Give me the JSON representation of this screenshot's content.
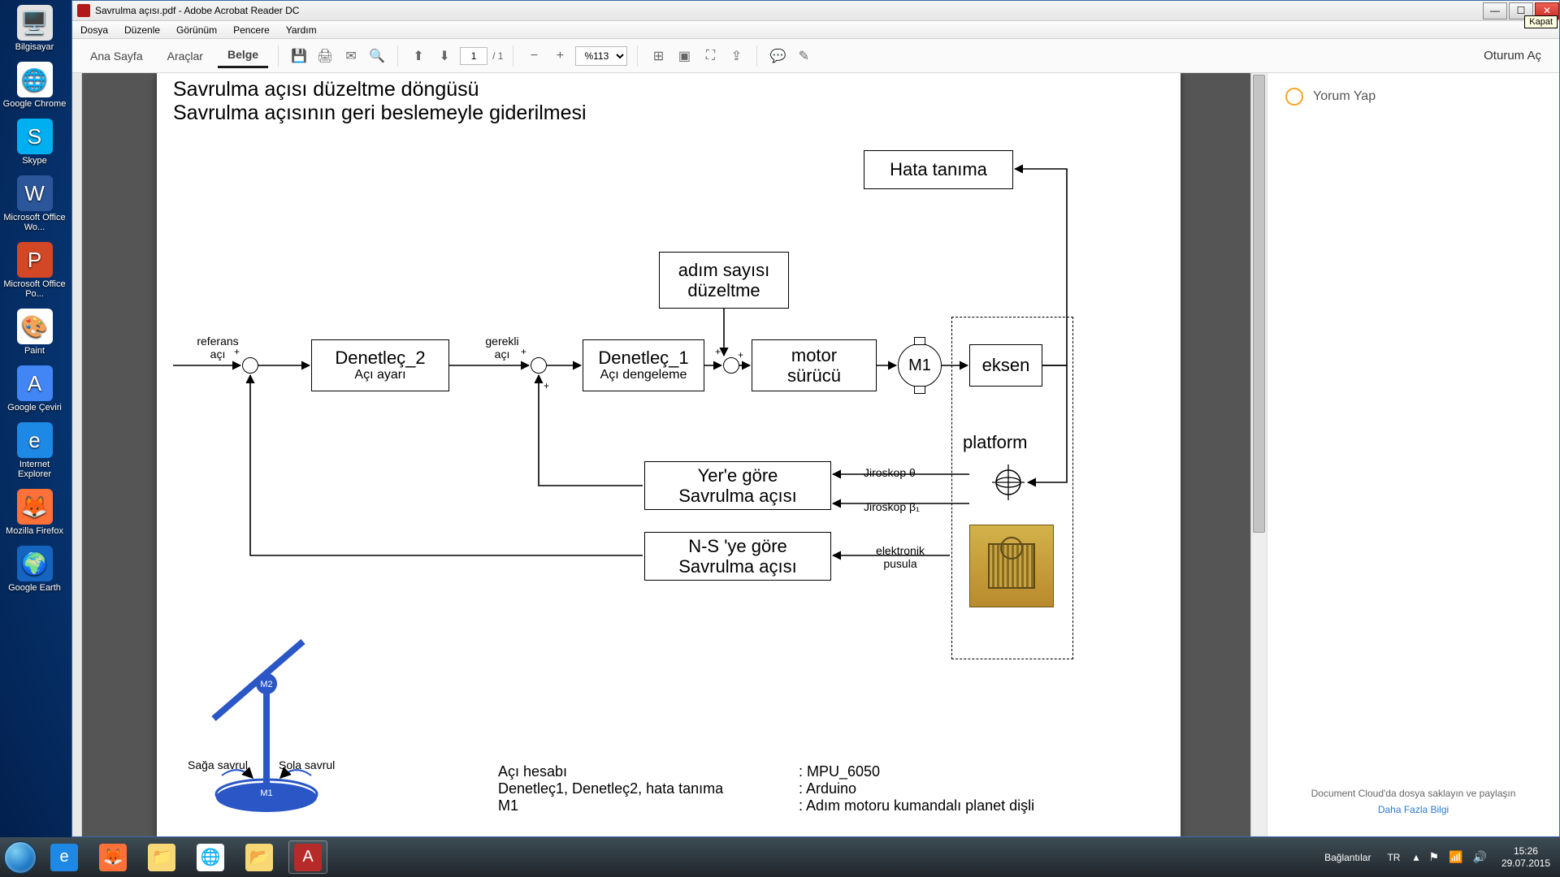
{
  "desktop_icons": [
    {
      "label": "Bilgisayar",
      "bg": "#e2e2e2",
      "glyph": "🖥️"
    },
    {
      "label": "Google Chrome",
      "bg": "#ffffff",
      "glyph": "🌐"
    },
    {
      "label": "Skype",
      "bg": "#00aff0",
      "glyph": "S"
    },
    {
      "label": "Microsoft Office Wo...",
      "bg": "#2b579a",
      "glyph": "W"
    },
    {
      "label": "Microsoft Office Po...",
      "bg": "#d24726",
      "glyph": "P"
    },
    {
      "label": "Paint",
      "bg": "#ffffff",
      "glyph": "🎨"
    },
    {
      "label": "Google Çeviri",
      "bg": "#4285f4",
      "glyph": "A"
    },
    {
      "label": "Internet Explorer",
      "bg": "#1e88e5",
      "glyph": "e"
    },
    {
      "label": "Mozilla Firefox",
      "bg": "#ff7139",
      "glyph": "🦊"
    },
    {
      "label": "Google Earth",
      "bg": "#1565c0",
      "glyph": "🌍"
    }
  ],
  "window": {
    "title": "Savrulma açısı.pdf - Adobe Acrobat Reader DC",
    "tooltip": "Kapat",
    "menus": [
      "Dosya",
      "Düzenle",
      "Görünüm",
      "Pencere",
      "Yardım"
    ],
    "tabs": {
      "home": "Ana Sayfa",
      "tools": "Araçlar",
      "doc": "Belge"
    },
    "page_current": "1",
    "page_total": "/ 1",
    "zoom": "%113",
    "signin": "Oturum Aç"
  },
  "sidepanel": {
    "comment": "Yorum Yap",
    "cloud": "Document Cloud'da dosya saklayın ve paylaşın",
    "more": "Daha Fazla Bilgi"
  },
  "document": {
    "title1": "Savrulma açısı düzeltme döngüsü",
    "title2": "Savrulma açısının geri beslemeyle giderilmesi",
    "blocks": {
      "hata": "Hata tanıma",
      "adim": {
        "l1": "adım sayısı",
        "l2": "düzeltme"
      },
      "den2": {
        "t": "Denetleç_2",
        "s": "Açı ayarı"
      },
      "den1": {
        "t": "Denetleç_1",
        "s": "Açı dengeleme"
      },
      "motor": {
        "l1": "motor",
        "l2": "sürücü"
      },
      "m1": "M1",
      "eksen": "eksen",
      "yer": {
        "l1": "Yer'e göre",
        "l2": "Savrulma açısı"
      },
      "ns": {
        "l1": "N-S 'ye göre",
        "l2": "Savrulma açısı"
      },
      "platform": "platform"
    },
    "labels": {
      "ref": {
        "l1": "referans",
        "l2": "açı"
      },
      "gerekli": {
        "l1": "gerekli",
        "l2": "açı"
      },
      "jiro_t": "Jiroskop θ",
      "jiro_b": "Jiroskop β₁",
      "epusula": {
        "l1": "elektronik",
        "l2": "pusula"
      },
      "saga": "Sağa savrul",
      "sola": "Sola savrul",
      "m2": "M2",
      "m1s": "M1"
    },
    "legend": {
      "r1k": "Açı hesabı",
      "r1v": ": MPU_6050",
      "r2k": "Denetleç1, Denetleç2, hata tanıma",
      "r2v": ": Arduino",
      "r3k": "M1",
      "r3v": ": Adım motoru kumandalı planet dişli"
    }
  },
  "taskbar": {
    "apps": [
      {
        "name": "ie",
        "bg": "#1e88e5",
        "glyph": "e",
        "active": false
      },
      {
        "name": "firefox",
        "bg": "#ff7139",
        "glyph": "🦊",
        "active": false
      },
      {
        "name": "explorer",
        "bg": "#f8d775",
        "glyph": "📁",
        "active": false
      },
      {
        "name": "chrome",
        "bg": "#ffffff",
        "glyph": "🌐",
        "active": false
      },
      {
        "name": "folder2",
        "bg": "#f8d775",
        "glyph": "📂",
        "active": false
      },
      {
        "name": "acrobat",
        "bg": "#b11a1a",
        "glyph": "A",
        "active": true
      }
    ],
    "links": "Bağlantılar",
    "lang": "TR",
    "time": "15:26",
    "date": "29.07.2015"
  }
}
